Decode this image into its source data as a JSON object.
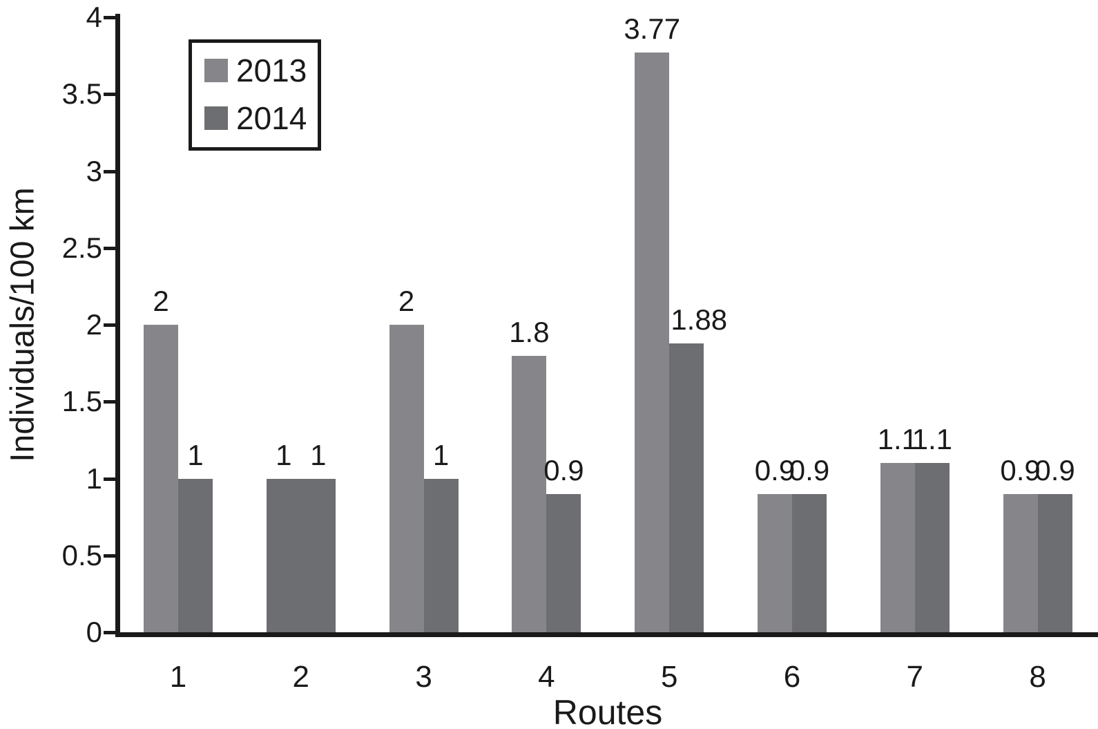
{
  "figure": {
    "background_color": "#ffffff",
    "text_color": "#1a1a1a"
  },
  "chart_data": {
    "type": "bar",
    "title": "",
    "xlabel": "Routes",
    "ylabel": "Individuals/100 km",
    "categories": [
      "1",
      "2",
      "3",
      "4",
      "5",
      "6",
      "7",
      "8"
    ],
    "series": [
      {
        "name": "2013",
        "color": "#86868a",
        "values": [
          2,
          1,
          2,
          1.8,
          3.77,
          0.9,
          1.1,
          0.9
        ],
        "labels": [
          "2",
          "1",
          "2",
          "1.8",
          "3.77",
          "0.9",
          "1.1",
          "0.9"
        ],
        "color_overrides": {
          "1": "#6d6e71"
        }
      },
      {
        "name": "2014",
        "color": "#6d6e71",
        "values": [
          1,
          1,
          1,
          0.9,
          1.88,
          0.9,
          1.1,
          0.9
        ],
        "labels": [
          "1",
          "1",
          "1",
          "0.9",
          "1.88",
          "0.9",
          "1.1",
          "0.9"
        ],
        "label_dx": {
          "4": 18
        }
      }
    ],
    "ylim": [
      0,
      4
    ],
    "yticks": [
      0,
      0.5,
      1,
      1.5,
      2,
      2.5,
      3,
      3.5,
      4
    ],
    "ytick_labels": [
      "0",
      "0.5",
      "1",
      "1.5",
      "2",
      "2.5",
      "3",
      "3.5",
      "4"
    ],
    "grid": false,
    "legend": {
      "position": "top-left",
      "items": [
        {
          "label": "2013"
        },
        {
          "label": "2014"
        }
      ]
    }
  }
}
